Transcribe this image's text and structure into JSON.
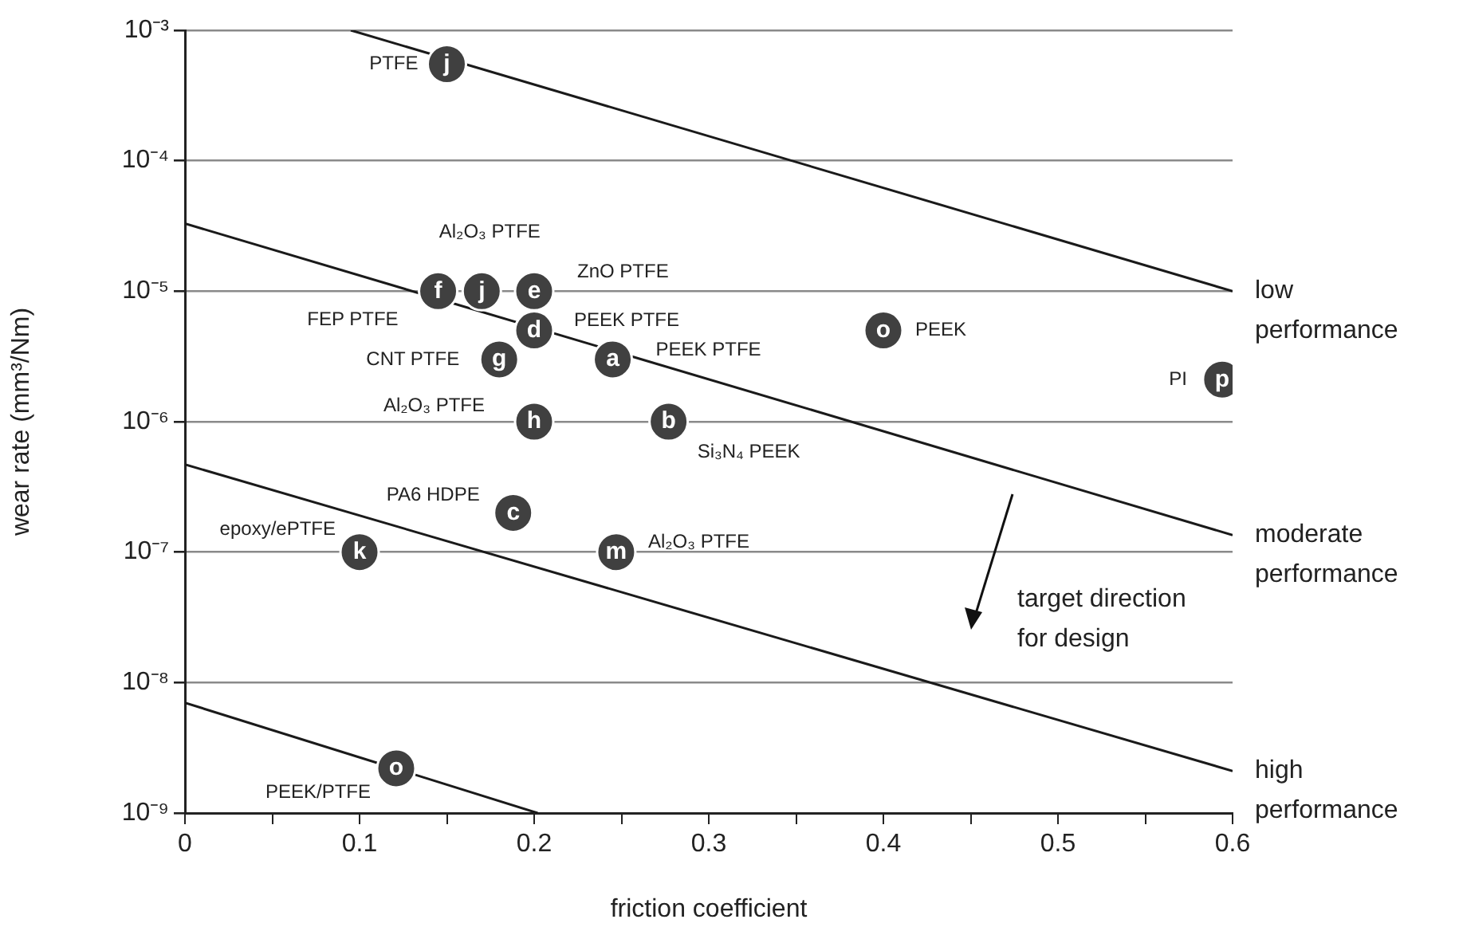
{
  "chart_data": {
    "type": "scatter",
    "xlabel": "friction coefficient",
    "ylabel": "wear rate (mm³/Nm)",
    "log": "y",
    "grid": "y",
    "marker": "circle",
    "legend": false,
    "xlim": [
      0,
      0.6
    ],
    "ylim": [
      1e-09,
      0.001
    ],
    "xticks": [
      0,
      {
        "value": 0.05,
        "label": null
      },
      0.1,
      {
        "value": 0.15,
        "label": null
      },
      0.2,
      {
        "value": 0.25,
        "label": null
      },
      0.3,
      {
        "value": 0.35,
        "label": null
      },
      0.4,
      {
        "value": 0.45,
        "label": null
      },
      0.5,
      {
        "value": 0.55,
        "label": null
      },
      0.6
    ],
    "yticks": [
      {
        "value": 1e-09,
        "label": "10⁻⁹"
      },
      {
        "value": 1e-08,
        "label": "10⁻⁸"
      },
      {
        "value": 1e-07,
        "label": "10⁻⁷"
      },
      {
        "value": 1e-06,
        "label": "10⁻⁶"
      },
      {
        "value": 1e-05,
        "label": "10⁻⁵"
      },
      {
        "value": 0.0001,
        "label": "10⁻⁴"
      },
      {
        "value": 0.001,
        "label": "10⁻³"
      }
    ],
    "series": [
      {
        "type": "scatter",
        "color": "#404040",
        "x": [
          0.15,
          0.145,
          0.17,
          0.2,
          0.2,
          0.18,
          0.245,
          0.2,
          0.277,
          0.4,
          0.594,
          0.188,
          0.247,
          0.1,
          0.121
        ],
        "values": [
          0.00055,
          1e-05,
          1e-05,
          1e-05,
          5e-06,
          3e-06,
          3e-06,
          1e-06,
          1e-06,
          5e-06,
          2.1e-06,
          2e-07,
          1e-07,
          1e-07,
          2.2e-09
        ]
      },
      {
        "type": "line",
        "color": "#1a1a1a",
        "marker": "none",
        "x": [
          0.095,
          0.6
        ],
        "values": [
          0.001,
          1e-05
        ]
      },
      {
        "type": "line",
        "color": "#1a1a1a",
        "marker": "none",
        "x": [
          0,
          0.6
        ],
        "values": [
          3.3e-05,
          1.35e-07
        ]
      },
      {
        "type": "line",
        "color": "#1a1a1a",
        "marker": "none",
        "x": [
          0,
          0.6
        ],
        "values": [
          4.7e-07,
          2.1e-09
        ]
      },
      {
        "type": "line",
        "color": "#1a1a1a",
        "marker": "none",
        "x": [
          0,
          0.202
        ],
        "values": [
          7e-09,
          1e-09
        ]
      }
    ],
    "annotations": [
      {
        "text": "j",
        "x": 0.15,
        "y": 0.00055
      },
      {
        "text": "PTFE",
        "x": 0.15,
        "y": 0.00055
      },
      {
        "text": "f",
        "x": 0.145,
        "y": 1e-05
      },
      {
        "text": "FEP PTFE",
        "x": 0.145,
        "y": 1e-05
      },
      {
        "text": "j",
        "x": 0.17,
        "y": 1e-05
      },
      {
        "text": "Al₂O₃ PTFE",
        "x": 0.17,
        "y": 1e-05
      },
      {
        "text": "e",
        "x": 0.2,
        "y": 1e-05
      },
      {
        "text": "ZnO PTFE",
        "x": 0.2,
        "y": 1e-05
      },
      {
        "text": "d",
        "x": 0.2,
        "y": 5e-06
      },
      {
        "text": "PEEK PTFE",
        "x": 0.2,
        "y": 5e-06
      },
      {
        "text": "g",
        "x": 0.18,
        "y": 3e-06
      },
      {
        "text": "CNT PTFE",
        "x": 0.18,
        "y": 3e-06
      },
      {
        "text": "a",
        "x": 0.245,
        "y": 3e-06
      },
      {
        "text": "PEEK PTFE",
        "x": 0.245,
        "y": 3e-06
      },
      {
        "text": "h",
        "x": 0.2,
        "y": 1e-06
      },
      {
        "text": "Al₂O₃ PTFE",
        "x": 0.2,
        "y": 1e-06
      },
      {
        "text": "b",
        "x": 0.277,
        "y": 1e-06
      },
      {
        "text": "Si₃N₄ PEEK",
        "x": 0.277,
        "y": 1e-06
      },
      {
        "text": "o",
        "x": 0.4,
        "y": 5e-06
      },
      {
        "text": "PEEK",
        "x": 0.4,
        "y": 5e-06
      },
      {
        "text": "p",
        "x": 0.594,
        "y": 2.1e-06
      },
      {
        "text": "PI",
        "x": 0.594,
        "y": 2.1e-06
      },
      {
        "text": "c",
        "x": 0.188,
        "y": 2e-07
      },
      {
        "text": "PA6 HDPE",
        "x": 0.188,
        "y": 2e-07
      },
      {
        "text": "m",
        "x": 0.247,
        "y": 1e-07
      },
      {
        "text": "Al₂O₃ PTFE",
        "x": 0.247,
        "y": 1e-07
      },
      {
        "text": "k",
        "x": 0.1,
        "y": 1e-07
      },
      {
        "text": "epoxy/ePTFE",
        "x": 0.1,
        "y": 1e-07
      },
      {
        "text": "o",
        "x": 0.121,
        "y": 2.2e-09
      },
      {
        "text": "PEEK/PTFE",
        "x": 0.121,
        "y": 2.2e-09
      },
      {
        "text": "low performance",
        "x": 0.6,
        "y": 1e-05
      },
      {
        "text": "moderate performance",
        "x": 0.6,
        "y": 1.35e-07
      },
      {
        "text": "high performance",
        "x": 0.6,
        "y": 2.1e-09
      },
      "target direction for design"
    ]
  }
}
